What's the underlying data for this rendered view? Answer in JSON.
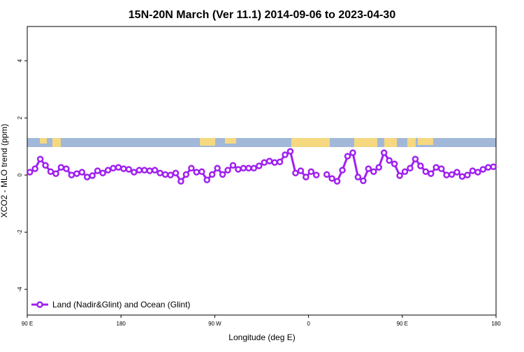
{
  "chart_data": {
    "type": "line",
    "title": "15N-20N March (Ver 11.1)   2014-09-06 to 2023-04-30",
    "x_label": "Longitude (deg E)",
    "y_label": "XCO2 - MLO trend (ppm)",
    "xlim": [
      90,
      540
    ],
    "xticks": [
      {
        "value": 90,
        "label": "90 E"
      },
      180,
      {
        "value": 270,
        "label": "90 W"
      },
      {
        "value": 360,
        "label": "0"
      },
      {
        "value": 450,
        "label": "90 E"
      },
      {
        "value": 540,
        "label": "180"
      }
    ],
    "ylim": [
      -4.9,
      5.2
    ],
    "yticks": [
      -4,
      -2,
      0,
      2,
      4
    ],
    "legend": "bottom-left",
    "x": [
      92.5,
      97.5,
      102.5,
      107.5,
      112.5,
      117.5,
      122.5,
      127.5,
      132.5,
      137.5,
      142.5,
      147.5,
      152.5,
      157.5,
      162.5,
      167.5,
      172.5,
      177.5,
      182.5,
      187.5,
      192.5,
      197.5,
      202.5,
      207.5,
      212.5,
      217.5,
      222.5,
      227.5,
      232.5,
      237.5,
      242.5,
      247.5,
      252.5,
      257.5,
      262.5,
      267.5,
      272.5,
      277.5,
      282.5,
      287.5,
      292.5,
      297.5,
      302.5,
      307.5,
      312.5,
      317.5,
      322.5,
      327.5,
      332.5,
      337.5,
      342.5,
      347.5,
      352.5,
      357.5,
      362.5,
      367.5,
      372.5,
      377.5,
      382.5,
      387.5,
      392.5,
      397.5,
      402.5,
      407.5,
      412.5,
      417.5,
      422.5,
      427.5,
      432.5,
      437.5,
      442.5,
      447.5,
      452.5,
      457.5,
      462.5,
      467.5,
      472.5,
      477.5,
      482.5,
      487.5,
      492.5,
      497.5,
      502.5,
      507.5,
      512.5,
      517.5,
      522.5,
      527.5,
      532.5,
      537.5
    ],
    "series": [
      {
        "name": "Land (Nadir&Glint) and Ocean (Glint)",
        "color": "#a020f0",
        "values": [
          0.1,
          0.22,
          0.56,
          0.34,
          0.12,
          0.05,
          0.27,
          0.22,
          0.0,
          0.05,
          0.1,
          -0.07,
          -0.02,
          0.15,
          0.07,
          0.17,
          0.24,
          0.27,
          0.22,
          0.2,
          0.1,
          0.17,
          0.17,
          0.15,
          0.17,
          0.07,
          0.02,
          0.0,
          0.07,
          -0.22,
          0.02,
          0.24,
          0.1,
          0.12,
          -0.17,
          0.02,
          0.24,
          0.02,
          0.17,
          0.34,
          0.2,
          0.24,
          0.24,
          0.24,
          0.32,
          0.44,
          0.49,
          0.44,
          0.46,
          0.71,
          0.83,
          0.07,
          0.15,
          -0.07,
          0.12,
          0.0,
          null,
          0.02,
          -0.12,
          -0.22,
          0.17,
          0.66,
          0.78,
          -0.07,
          -0.2,
          0.22,
          0.12,
          0.27,
          0.78,
          0.51,
          0.39,
          -0.02,
          0.12,
          0.24,
          0.56,
          0.32,
          0.12,
          0.05,
          0.27,
          0.22,
          0.0,
          0.02,
          0.1,
          -0.05,
          0.0,
          0.15,
          0.1,
          0.2,
          0.27,
          0.29
        ]
      }
    ]
  }
}
